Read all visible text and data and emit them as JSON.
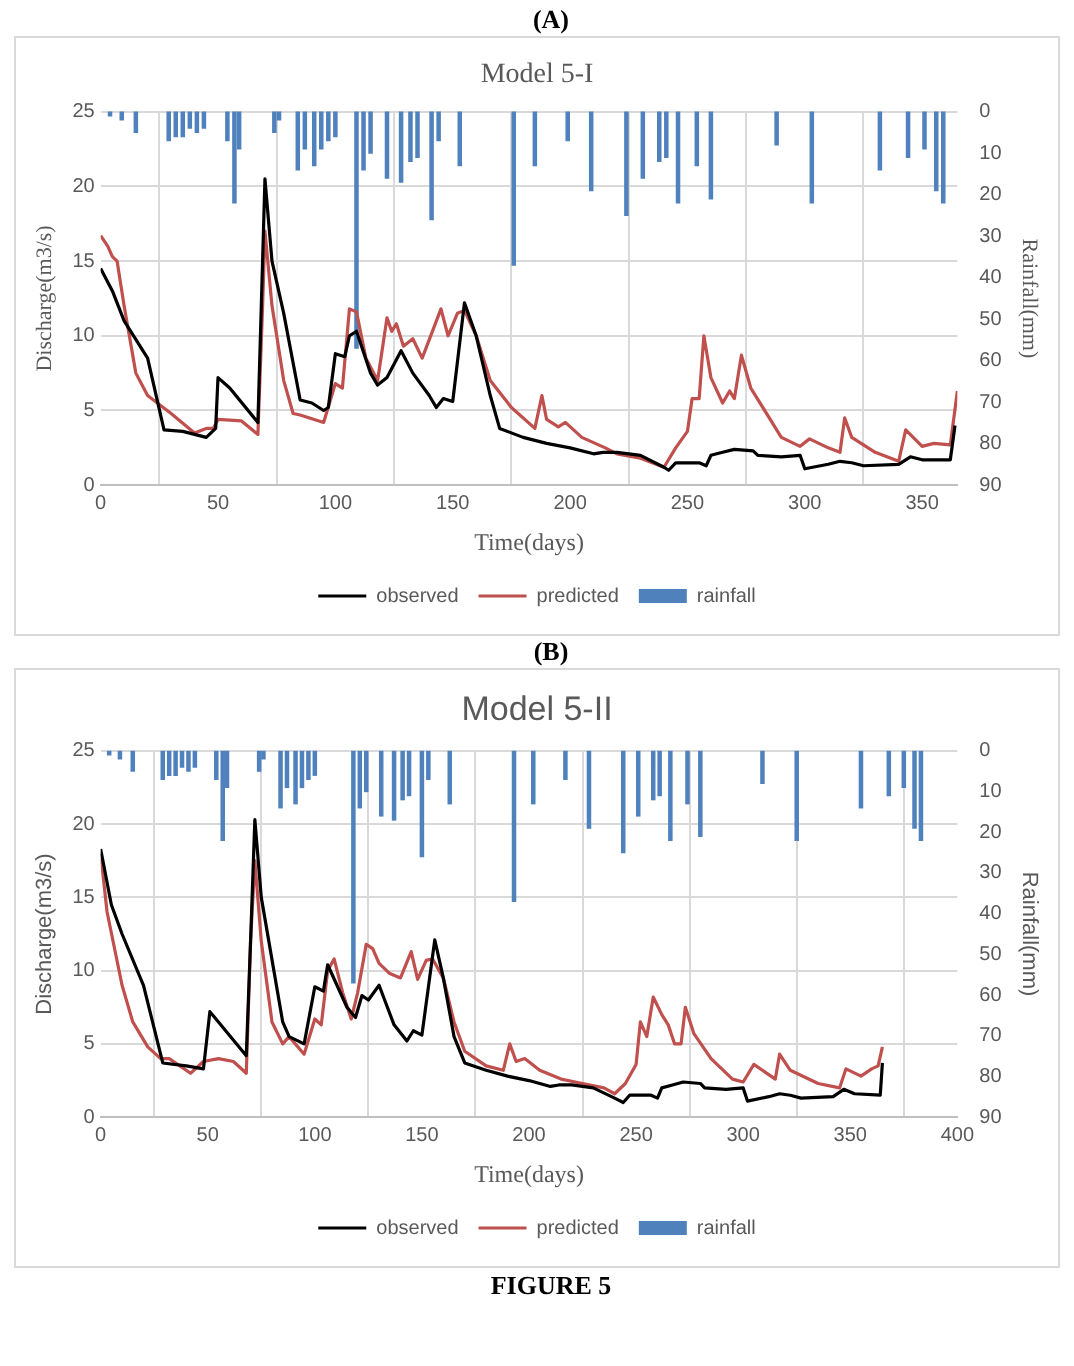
{
  "chart_data": [
    {
      "type": "line",
      "title": "Model 5-I",
      "xlabel": "Time(days)",
      "ylabel": "Discharge(m3/s)",
      "y2label": "Rainfall(mm)",
      "annotations": [
        "(A)"
      ],
      "xlim": [
        0,
        365
      ],
      "xticks": [
        0,
        50,
        100,
        150,
        200,
        250,
        300,
        350
      ],
      "ylim": [
        0,
        25
      ],
      "yticks": [
        0,
        5,
        10,
        15,
        20,
        25
      ],
      "y2lim": [
        90,
        0
      ],
      "y2ticks": [
        0,
        10,
        20,
        30,
        40,
        50,
        60,
        70,
        80,
        90
      ],
      "grid": true,
      "legend": "bottom",
      "marker": "none",
      "series": [
        {
          "name": "rainfall",
          "type": "bar",
          "axis": "y2",
          "color": "#4f81bd",
          "x": [
            4,
            9,
            15,
            29,
            32,
            35,
            38,
            41,
            44,
            54,
            57,
            59,
            74,
            76,
            84,
            87,
            91,
            94,
            97,
            100,
            109,
            112,
            115,
            122,
            128,
            132,
            135,
            141,
            144,
            153,
            176,
            185,
            199,
            209,
            224,
            231,
            238,
            241,
            246,
            254,
            260,
            288,
            303,
            332,
            344,
            351,
            356,
            359
          ],
          "values": [
            1,
            2,
            5,
            7,
            6,
            6,
            4,
            5,
            4,
            7,
            22,
            9,
            5,
            2,
            14,
            9,
            13,
            9,
            7,
            6,
            57,
            14,
            10,
            16,
            17,
            12,
            11,
            26,
            7,
            13,
            37,
            13,
            7,
            19,
            25,
            16,
            12,
            11,
            22,
            13,
            21,
            8,
            22,
            14,
            11,
            9,
            19,
            22
          ]
        },
        {
          "name": "observed",
          "color": "#000000",
          "x": [
            0,
            5,
            10,
            20,
            27,
            35,
            45,
            49,
            50,
            55,
            67,
            69,
            70,
            73,
            78,
            85,
            90,
            95,
            97,
            100,
            104,
            106,
            109,
            115,
            118,
            122,
            128,
            133,
            140,
            143,
            146,
            150,
            155,
            160,
            166,
            170,
            180,
            190,
            200,
            210,
            214,
            220,
            230,
            240,
            242,
            245,
            255,
            258,
            260,
            265,
            270,
            278,
            280,
            290,
            298,
            300,
            310,
            315,
            320,
            325,
            340,
            345,
            350,
            362,
            364
          ],
          "values": [
            14.5,
            13,
            11,
            8.5,
            3.7,
            3.6,
            3.2,
            3.8,
            7.2,
            6.5,
            4.2,
            15,
            20.5,
            15,
            11.5,
            5.7,
            5.5,
            5,
            5.2,
            8.8,
            8.6,
            10,
            10.3,
            7.5,
            6.7,
            7.2,
            9,
            7.5,
            6,
            5.2,
            5.8,
            5.6,
            12.2,
            10,
            6,
            3.8,
            3.2,
            2.8,
            2.5,
            2.1,
            2.2,
            2.2,
            2,
            1.2,
            1,
            1.5,
            1.5,
            1.3,
            2,
            2.2,
            2.4,
            2.3,
            2,
            1.9,
            2,
            1.1,
            1.4,
            1.6,
            1.5,
            1.3,
            1.4,
            1.9,
            1.7,
            1.7,
            4
          ]
        },
        {
          "name": "predicted",
          "color": "#c0504d",
          "x": [
            0,
            3,
            5,
            7,
            10,
            15,
            20,
            30,
            40,
            45,
            48,
            50,
            60,
            67,
            69,
            70,
            73,
            78,
            82,
            85,
            95,
            100,
            103,
            106,
            109,
            113,
            118,
            122,
            124,
            126,
            129,
            133,
            137,
            145,
            148,
            152,
            155,
            160,
            166,
            175,
            185,
            188,
            190,
            195,
            198,
            205,
            215,
            220,
            230,
            240,
            245,
            250,
            252,
            255,
            257,
            260,
            265,
            268,
            270,
            273,
            277,
            290,
            298,
            302,
            310,
            315,
            317,
            320,
            330,
            340,
            343,
            350,
            355,
            362,
            365
          ],
          "values": [
            16.7,
            16,
            15.3,
            15,
            12,
            7.5,
            6,
            4.8,
            3.5,
            3.8,
            3.8,
            4.4,
            4.3,
            3.4,
            12,
            17,
            12,
            7,
            4.8,
            4.7,
            4.2,
            6.8,
            6.5,
            11.8,
            11.6,
            8.5,
            7,
            11.2,
            10.3,
            10.8,
            9.3,
            9.8,
            8.5,
            11.8,
            10,
            11.5,
            11.7,
            10,
            7,
            5.2,
            3.8,
            6,
            4.4,
            3.9,
            4.2,
            3.2,
            2.5,
            2.1,
            1.8,
            1.2,
            2.5,
            3.6,
            5.8,
            5.8,
            10,
            7.2,
            5.5,
            6.3,
            5.8,
            8.7,
            6.5,
            3.2,
            2.6,
            3.1,
            2.5,
            2.2,
            4.5,
            3.2,
            2.2,
            1.6,
            3.7,
            2.6,
            2.8,
            2.7,
            6.3
          ]
        }
      ]
    },
    {
      "type": "line",
      "title": "Model 5-II",
      "xlabel": "Time(days)",
      "ylabel": "Discharge(m3/s)",
      "y2label": "Rainfall(mm)",
      "annotations": [
        "(B)",
        "FIGURE 5"
      ],
      "xlim": [
        0,
        400
      ],
      "xticks": [
        0,
        50,
        100,
        150,
        200,
        250,
        300,
        350,
        400
      ],
      "ylim": [
        0,
        25
      ],
      "yticks": [
        0,
        5,
        10,
        15,
        20,
        25
      ],
      "y2lim": [
        90,
        0
      ],
      "y2ticks": [
        0,
        10,
        20,
        30,
        40,
        50,
        60,
        70,
        80,
        90
      ],
      "grid": true,
      "legend": "bottom",
      "marker": "none",
      "series": [
        {
          "name": "rainfall",
          "type": "bar",
          "axis": "y2",
          "color": "#4f81bd",
          "x": [
            4,
            9,
            15,
            29,
            32,
            35,
            38,
            41,
            44,
            54,
            57,
            59,
            74,
            76,
            84,
            87,
            91,
            94,
            97,
            100,
            118,
            121,
            124,
            131,
            137,
            141,
            144,
            150,
            153,
            163,
            193,
            202,
            217,
            228,
            244,
            251,
            258,
            261,
            266,
            274,
            280,
            309,
            325,
            355,
            368,
            375,
            380,
            383
          ],
          "values": [
            1,
            2,
            5,
            7,
            6,
            6,
            4,
            5,
            4,
            7,
            22,
            9,
            5,
            2,
            14,
            9,
            13,
            9,
            7,
            6,
            57,
            14,
            10,
            16,
            17,
            12,
            11,
            26,
            7,
            13,
            37,
            13,
            7,
            19,
            25,
            16,
            12,
            11,
            22,
            13,
            21,
            8,
            22,
            14,
            11,
            9,
            19,
            22
          ]
        },
        {
          "name": "observed",
          "color": "#000000",
          "x": [
            0,
            5,
            10,
            20,
            29,
            40,
            48,
            51,
            55,
            68,
            70,
            72,
            75,
            85,
            88,
            95,
            100,
            104,
            106,
            115,
            119,
            122,
            125,
            130,
            137,
            143,
            146,
            150,
            156,
            160,
            165,
            170,
            180,
            190,
            200,
            210,
            214,
            220,
            230,
            240,
            244,
            247,
            257,
            260,
            262,
            267,
            272,
            280,
            282,
            292,
            300,
            302,
            312,
            317,
            322,
            327,
            342,
            347,
            352,
            364,
            365
          ],
          "values": [
            18.3,
            14.5,
            12.5,
            9,
            3.7,
            3.5,
            3.3,
            7.2,
            6.5,
            4.2,
            12,
            20.3,
            15,
            6.5,
            5.5,
            5,
            8.9,
            8.6,
            10.4,
            7.5,
            6.8,
            8.3,
            8,
            9,
            6.3,
            5.2,
            5.9,
            5.6,
            12.1,
            9.5,
            5.5,
            3.7,
            3.2,
            2.8,
            2.5,
            2.1,
            2.2,
            2.2,
            2,
            1.3,
            1,
            1.5,
            1.5,
            1.3,
            2,
            2.2,
            2.4,
            2.3,
            2,
            1.9,
            2,
            1.1,
            1.4,
            1.6,
            1.5,
            1.3,
            1.4,
            1.9,
            1.6,
            1.5,
            3.7
          ]
        },
        {
          "name": "predicted",
          "color": "#c0504d",
          "x": [
            0,
            3,
            10,
            15,
            22,
            28,
            32,
            42,
            48,
            55,
            62,
            68,
            70,
            72,
            75,
            80,
            85,
            88,
            95,
            100,
            103,
            106,
            109,
            113,
            117,
            120,
            124,
            127,
            130,
            135,
            140,
            145,
            148,
            152,
            155,
            160,
            165,
            170,
            180,
            188,
            191,
            194,
            198,
            205,
            215,
            225,
            235,
            240,
            245,
            250,
            252,
            255,
            258,
            262,
            265,
            268,
            271,
            273,
            277,
            285,
            295,
            300,
            305,
            315,
            317,
            322,
            335,
            345,
            348,
            355,
            360,
            363,
            365
          ],
          "values": [
            18,
            14,
            9,
            6.5,
            4.8,
            4,
            4,
            3,
            3.8,
            4,
            3.8,
            3,
            12,
            17.5,
            12,
            6.5,
            5,
            5.5,
            4.3,
            6.7,
            6.3,
            10,
            10.8,
            8.5,
            6.7,
            8.5,
            11.8,
            11.5,
            10.5,
            9.8,
            9.5,
            11.3,
            9.4,
            10.7,
            10.8,
            9.5,
            6.5,
            4.5,
            3.5,
            3.2,
            5,
            3.8,
            4,
            3.2,
            2.6,
            2.3,
            2,
            1.6,
            2.3,
            3.6,
            6.5,
            5.5,
            8.2,
            7,
            6.3,
            5,
            5,
            7.5,
            5.7,
            4,
            2.6,
            2.4,
            3.6,
            2.6,
            4.3,
            3.2,
            2.3,
            2,
            3.3,
            2.8,
            3.3,
            3.5,
            4.8
          ]
        }
      ]
    }
  ]
}
